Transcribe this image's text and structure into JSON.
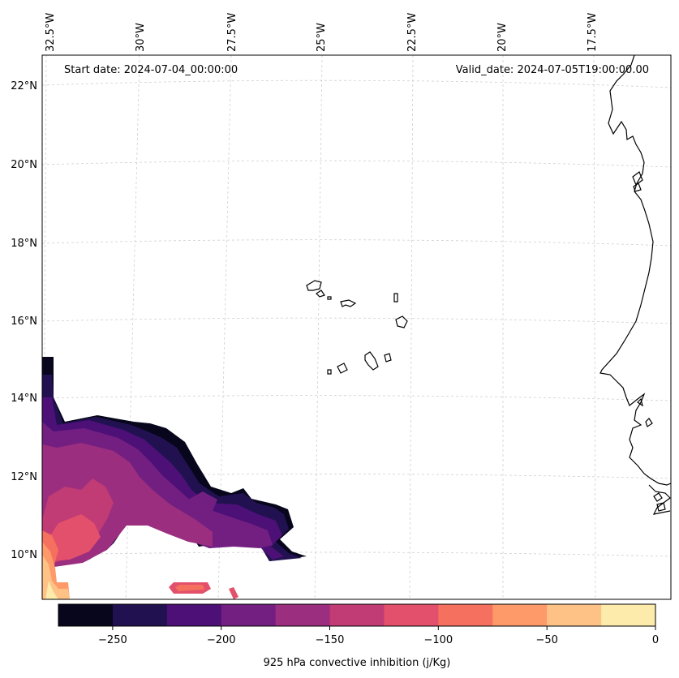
{
  "header": {
    "start_date": "Start date: 2024-07-04_00:00:00",
    "valid_date": "Valid_date: 2024-07-05T19:00:00.00"
  },
  "axes": {
    "lon_labels": [
      "32.5°W",
      "30°W",
      "27.5°W",
      "25°W",
      "22.5°W",
      "20°W",
      "17.5°W"
    ],
    "lat_labels": [
      "22°N",
      "20°N",
      "18°N",
      "16°N",
      "14°N",
      "12°N",
      "10°N"
    ]
  },
  "colorbar": {
    "label": "925 hPa convective inhibition (j/Kg)",
    "ticks": [
      "−250",
      "−200",
      "−150",
      "−100",
      "−50",
      "0"
    ],
    "colors": [
      "#07061c",
      "#221150",
      "#4c1077",
      "#721f81",
      "#9b2e7f",
      "#c13b75",
      "#e3506b",
      "#f5705e",
      "#fe9a6a",
      "#fec287",
      "#fcebaa"
    ]
  },
  "map": {
    "field": "925 hPa convective inhibition",
    "units": "j/Kg",
    "levels": [
      -275,
      -250,
      -225,
      -200,
      -175,
      -150,
      -125,
      -100,
      -75,
      -50,
      -25,
      0
    ],
    "gridlines": "dashed light grey",
    "coastline_color": "#000000"
  }
}
